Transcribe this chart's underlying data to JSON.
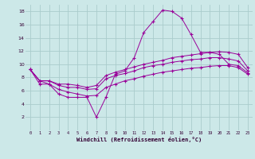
{
  "xlabel": "Windchill (Refroidissement éolien,°C)",
  "background_color": "#cce8e8",
  "grid_color": "#aacccc",
  "line_color": "#990099",
  "xlim": [
    -0.5,
    23.5
  ],
  "ylim": [
    0,
    19
  ],
  "xticks": [
    0,
    1,
    2,
    3,
    4,
    5,
    6,
    7,
    8,
    9,
    10,
    11,
    12,
    13,
    14,
    15,
    16,
    17,
    18,
    19,
    20,
    21,
    22,
    23
  ],
  "yticks": [
    2,
    4,
    6,
    8,
    10,
    12,
    14,
    16,
    18
  ],
  "series": [
    [
      9.2,
      7.0,
      7.0,
      5.5,
      5.0,
      5.0,
      5.0,
      2.0,
      5.0,
      8.5,
      9.0,
      11.0,
      14.8,
      16.5,
      18.2,
      18.0,
      17.0,
      14.5,
      11.8,
      11.8,
      11.5,
      10.0,
      9.8,
      8.7
    ],
    [
      9.2,
      7.5,
      7.5,
      7.0,
      7.0,
      6.8,
      6.5,
      6.8,
      8.3,
      8.8,
      9.2,
      9.6,
      10.0,
      10.3,
      10.6,
      11.0,
      11.2,
      11.4,
      11.6,
      11.8,
      11.9,
      11.8,
      11.5,
      9.5
    ],
    [
      9.2,
      7.5,
      7.5,
      6.8,
      6.5,
      6.5,
      6.2,
      6.3,
      7.8,
      8.3,
      8.6,
      9.0,
      9.5,
      9.8,
      10.0,
      10.3,
      10.5,
      10.7,
      10.8,
      11.0,
      11.0,
      10.8,
      10.5,
      9.0
    ],
    [
      9.2,
      7.5,
      7.0,
      6.2,
      5.8,
      5.5,
      5.2,
      5.3,
      6.5,
      7.0,
      7.5,
      7.8,
      8.2,
      8.5,
      8.8,
      9.0,
      9.2,
      9.4,
      9.5,
      9.7,
      9.8,
      9.8,
      9.5,
      8.5
    ]
  ]
}
